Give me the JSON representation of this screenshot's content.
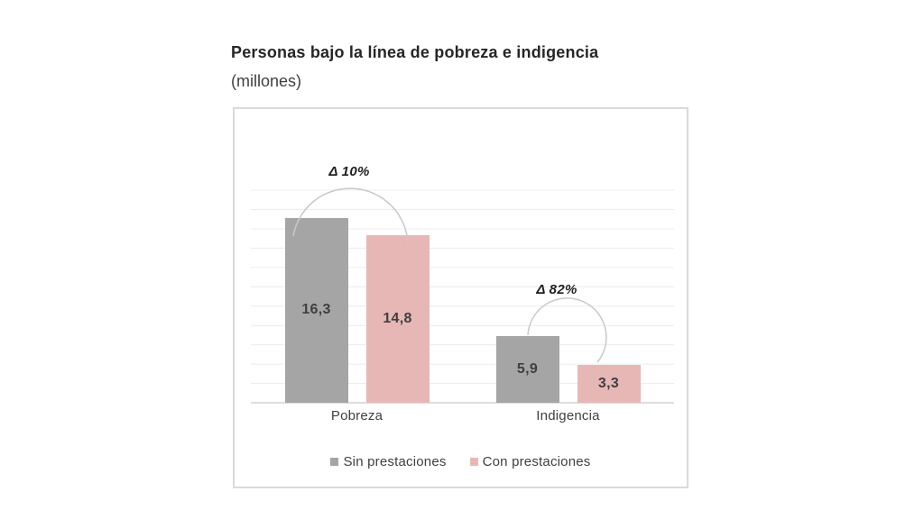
{
  "header": {
    "title": "Personas bajo la línea de pobreza e indigencia",
    "subtitle": "(millones)"
  },
  "chart_data": {
    "type": "bar",
    "title": "Personas bajo la línea de pobreza e indigencia",
    "subtitle": "(millones)",
    "unit": "millones de personas",
    "categories": [
      "Pobreza",
      "Indigencia"
    ],
    "series": [
      {
        "name": "Sin prestaciones",
        "color": "#a5a5a5",
        "values": [
          16.3,
          5.9
        ],
        "labels": [
          "16,3",
          "5,9"
        ]
      },
      {
        "name": "Con prestaciones",
        "color": "#e7b7b6",
        "values": [
          14.8,
          3.3
        ],
        "labels": [
          "14,8",
          "3,3"
        ]
      }
    ],
    "annotations": [
      {
        "text": "Δ 10%",
        "category": "Pobreza"
      },
      {
        "text": "Δ 82%",
        "category": "Indigencia"
      }
    ],
    "ylim": [
      0,
      22
    ],
    "grid": true,
    "grid_color": "#ececec",
    "axis_color": "#c9c9c9",
    "arc_color": "#c9c9c9",
    "legend_position": "bottom"
  }
}
